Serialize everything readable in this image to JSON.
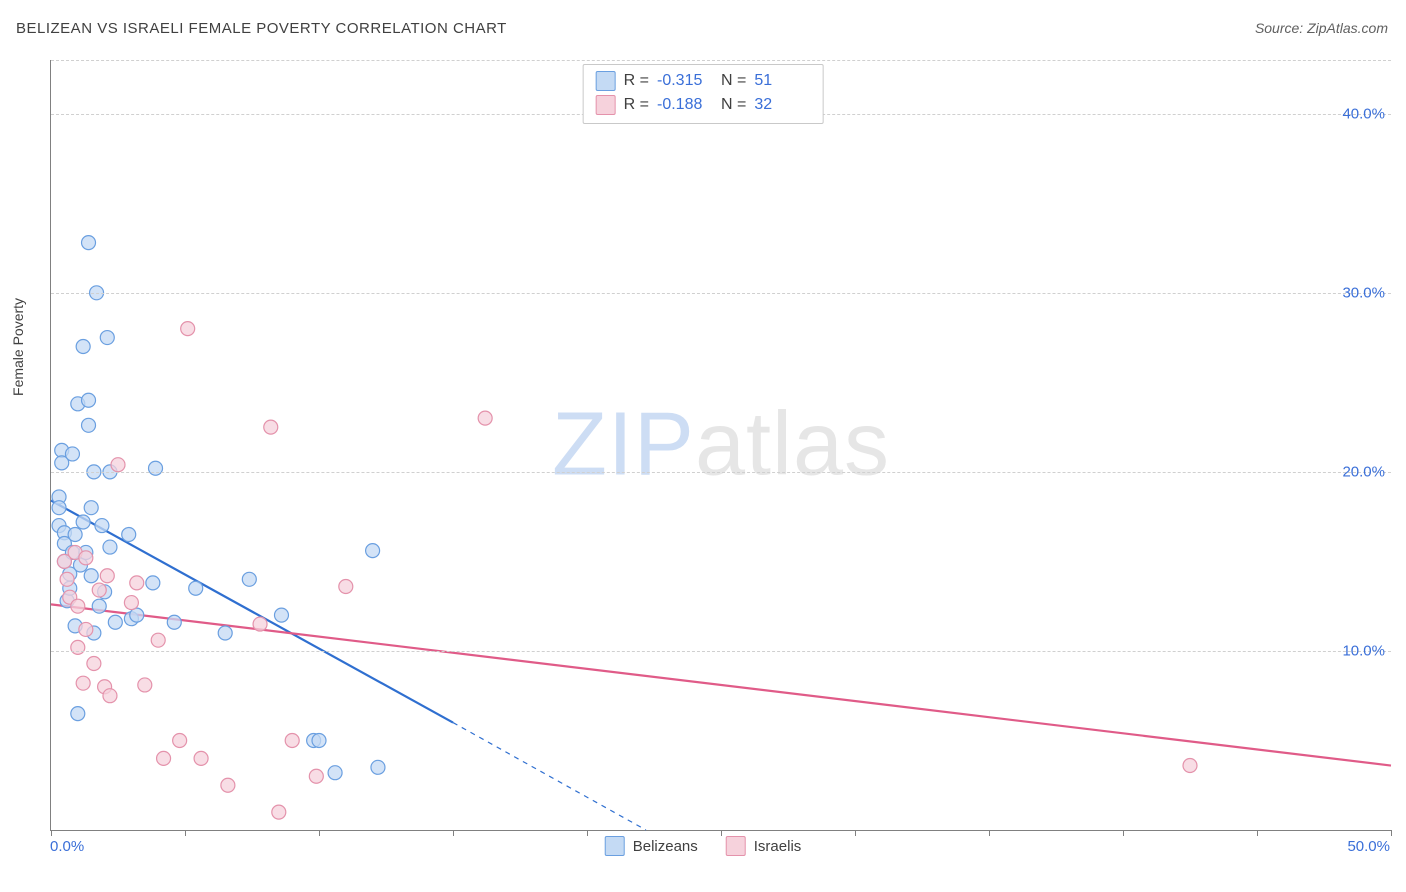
{
  "title": "BELIZEAN VS ISRAELI FEMALE POVERTY CORRELATION CHART",
  "source": "Source: ZipAtlas.com",
  "watermark": {
    "part1": "ZIP",
    "part2": "atlas"
  },
  "chart": {
    "type": "scatter",
    "x_axis_title": "",
    "y_axis_title": "Female Poverty",
    "xlim": [
      0,
      50
    ],
    "ylim": [
      0,
      43
    ],
    "y_ticks": [
      10,
      20,
      30,
      40
    ],
    "y_tick_labels": [
      "10.0%",
      "20.0%",
      "30.0%",
      "40.0%"
    ],
    "x_tick_positions": [
      0,
      5,
      10,
      15,
      20,
      25,
      30,
      35,
      40,
      45,
      50
    ],
    "x_label_min": "0.0%",
    "x_label_max": "50.0%",
    "grid_color": "#d0d0d0",
    "axis_color": "#808080",
    "background_color": "#ffffff",
    "marker_radius": 7,
    "marker_stroke_width": 1.2,
    "trend_line_width": 2.2,
    "series": [
      {
        "name": "Belizeans",
        "fill": "#c4daf4",
        "stroke": "#6a9fe0",
        "trend_color": "#2f6fd0",
        "trend_start": [
          0.0,
          18.4
        ],
        "trend_solid_end": [
          15.0,
          6.0
        ],
        "trend_dash_end": [
          22.2,
          0.0
        ],
        "R": "-0.315",
        "N": "51",
        "points": [
          [
            0.3,
            18.6
          ],
          [
            0.3,
            18.0
          ],
          [
            0.3,
            17.0
          ],
          [
            0.4,
            21.2
          ],
          [
            0.4,
            20.5
          ],
          [
            0.5,
            16.6
          ],
          [
            0.5,
            16.0
          ],
          [
            0.5,
            15.0
          ],
          [
            0.6,
            12.8
          ],
          [
            0.7,
            14.3
          ],
          [
            0.7,
            13.5
          ],
          [
            0.8,
            21.0
          ],
          [
            0.8,
            15.5
          ],
          [
            0.9,
            16.5
          ],
          [
            0.9,
            11.4
          ],
          [
            1.0,
            23.8
          ],
          [
            1.0,
            6.5
          ],
          [
            1.1,
            14.8
          ],
          [
            1.2,
            27.0
          ],
          [
            1.2,
            17.2
          ],
          [
            1.3,
            15.5
          ],
          [
            1.4,
            32.8
          ],
          [
            1.4,
            24.0
          ],
          [
            1.4,
            22.6
          ],
          [
            1.5,
            18.0
          ],
          [
            1.5,
            14.2
          ],
          [
            1.6,
            20.0
          ],
          [
            1.6,
            11.0
          ],
          [
            1.7,
            30.0
          ],
          [
            1.8,
            12.5
          ],
          [
            1.9,
            17.0
          ],
          [
            2.0,
            13.3
          ],
          [
            2.1,
            27.5
          ],
          [
            2.2,
            20.0
          ],
          [
            2.2,
            15.8
          ],
          [
            2.4,
            11.6
          ],
          [
            2.9,
            16.5
          ],
          [
            3.0,
            11.8
          ],
          [
            3.2,
            12.0
          ],
          [
            3.8,
            13.8
          ],
          [
            3.9,
            20.2
          ],
          [
            4.6,
            11.6
          ],
          [
            5.4,
            13.5
          ],
          [
            6.5,
            11.0
          ],
          [
            7.4,
            14.0
          ],
          [
            8.6,
            12.0
          ],
          [
            9.8,
            5.0
          ],
          [
            10.0,
            5.0
          ],
          [
            10.6,
            3.2
          ],
          [
            12.0,
            15.6
          ],
          [
            12.2,
            3.5
          ]
        ]
      },
      {
        "name": "Israelis",
        "fill": "#f6d2dc",
        "stroke": "#e492ab",
        "trend_color": "#e05b88",
        "trend_start": [
          0.0,
          12.6
        ],
        "trend_solid_end": [
          50.0,
          3.6
        ],
        "trend_dash_end": null,
        "R": "-0.188",
        "N": "32",
        "points": [
          [
            0.5,
            15.0
          ],
          [
            0.6,
            14.0
          ],
          [
            0.7,
            13.0
          ],
          [
            0.9,
            15.5
          ],
          [
            1.0,
            12.5
          ],
          [
            1.0,
            10.2
          ],
          [
            1.2,
            8.2
          ],
          [
            1.3,
            15.2
          ],
          [
            1.3,
            11.2
          ],
          [
            1.6,
            9.3
          ],
          [
            1.8,
            13.4
          ],
          [
            2.0,
            8.0
          ],
          [
            2.1,
            14.2
          ],
          [
            2.2,
            7.5
          ],
          [
            2.5,
            20.4
          ],
          [
            3.0,
            12.7
          ],
          [
            3.2,
            13.8
          ],
          [
            3.5,
            8.1
          ],
          [
            4.0,
            10.6
          ],
          [
            4.2,
            4.0
          ],
          [
            4.8,
            5.0
          ],
          [
            5.1,
            28.0
          ],
          [
            5.6,
            4.0
          ],
          [
            6.6,
            2.5
          ],
          [
            7.8,
            11.5
          ],
          [
            8.2,
            22.5
          ],
          [
            8.5,
            1.0
          ],
          [
            9.0,
            5.0
          ],
          [
            9.9,
            3.0
          ],
          [
            11.0,
            13.6
          ],
          [
            16.2,
            23.0
          ],
          [
            42.5,
            3.6
          ]
        ]
      }
    ]
  }
}
